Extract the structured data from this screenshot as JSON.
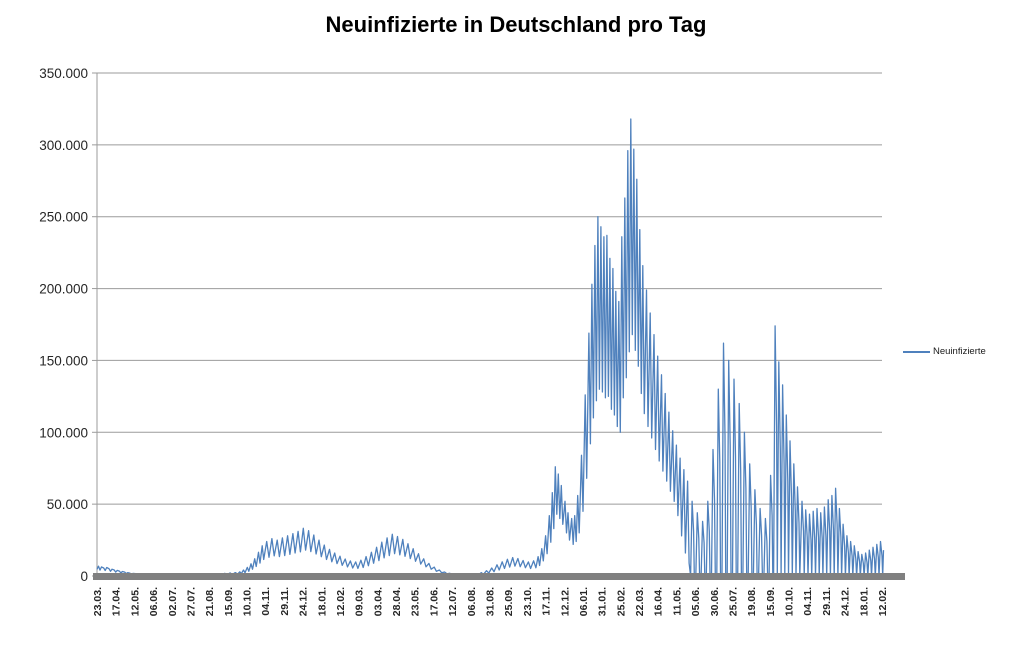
{
  "chart_data": {
    "type": "line",
    "title": "Neuinfizierte in Deutschland pro Tag",
    "series_name": "Neuinfizierte",
    "line_color": "#4F81BD",
    "grid_color": "#9b9b9b",
    "axis_color": "#808080",
    "text_color": "#262626",
    "ylim": [
      0,
      350000
    ],
    "yticks": [
      0,
      50000,
      100000,
      150000,
      200000,
      250000,
      300000,
      350000
    ],
    "ytick_labels": [
      "0",
      "50.000",
      "100.000",
      "150.000",
      "200.000",
      "250.000",
      "300.000",
      "350.000"
    ],
    "x_tick_interval_days": 25,
    "x_total_days": 1050,
    "x_tick_labels": [
      "23.03.",
      "17.04.",
      "12.05.",
      "06.06.",
      "02.07.",
      "27.07.",
      "21.08.",
      "15.09.",
      "10.10.",
      "04.11.",
      "29.11.",
      "24.12.",
      "18.01.",
      "12.02.",
      "09.03.",
      "03.04.",
      "28.04.",
      "23.05.",
      "17.06.",
      "12.07.",
      "06.08.",
      "31.08.",
      "25.09.",
      "23.10.",
      "17.11.",
      "12.12.",
      "06.01.",
      "31.01.",
      "25.02.",
      "22.03.",
      "16.04.",
      "11.05.",
      "05.06.",
      "30.06.",
      "25.07.",
      "19.08.",
      "15.09.",
      "10.10.",
      "04.11.",
      "29.11.",
      "24.12.",
      "18.01.",
      "12.02."
    ],
    "legend_position": "right",
    "grid": "horizontal",
    "points": [
      [
        0,
        4600
      ],
      [
        2,
        6800
      ],
      [
        4,
        4100
      ],
      [
        6,
        6300
      ],
      [
        9,
        5600
      ],
      [
        11,
        3800
      ],
      [
        13,
        5900
      ],
      [
        16,
        5100
      ],
      [
        18,
        3300
      ],
      [
        20,
        4700
      ],
      [
        23,
        4200
      ],
      [
        25,
        2700
      ],
      [
        27,
        3900
      ],
      [
        30,
        3400
      ],
      [
        32,
        2100
      ],
      [
        34,
        3100
      ],
      [
        37,
        2700
      ],
      [
        39,
        1600
      ],
      [
        41,
        2400
      ],
      [
        44,
        2000
      ],
      [
        46,
        1200
      ],
      [
        48,
        1800
      ],
      [
        52,
        1600
      ],
      [
        55,
        800
      ],
      [
        59,
        1400
      ],
      [
        62,
        700
      ],
      [
        66,
        1200
      ],
      [
        69,
        550
      ],
      [
        73,
        1000
      ],
      [
        76,
        450
      ],
      [
        80,
        850
      ],
      [
        83,
        380
      ],
      [
        87,
        750
      ],
      [
        90,
        340
      ],
      [
        94,
        700
      ],
      [
        97,
        360
      ],
      [
        101,
        750
      ],
      [
        104,
        400
      ],
      [
        108,
        820
      ],
      [
        111,
        430
      ],
      [
        115,
        880
      ],
      [
        118,
        460
      ],
      [
        122,
        950
      ],
      [
        125,
        500
      ],
      [
        129,
        1020
      ],
      [
        132,
        540
      ],
      [
        136,
        1100
      ],
      [
        139,
        580
      ],
      [
        143,
        1250
      ],
      [
        146,
        640
      ],
      [
        150,
        1400
      ],
      [
        153,
        720
      ],
      [
        157,
        1550
      ],
      [
        160,
        800
      ],
      [
        164,
        1700
      ],
      [
        167,
        880
      ],
      [
        171,
        1900
      ],
      [
        174,
        980
      ],
      [
        178,
        2150
      ],
      [
        181,
        1100
      ],
      [
        185,
        2400
      ],
      [
        188,
        1300
      ],
      [
        191,
        2900
      ],
      [
        193,
        1600
      ],
      [
        196,
        4200
      ],
      [
        198,
        2300
      ],
      [
        201,
        6000
      ],
      [
        203,
        3300
      ],
      [
        206,
        8500
      ],
      [
        208,
        4700
      ],
      [
        211,
        12000
      ],
      [
        213,
        6600
      ],
      [
        216,
        16500
      ],
      [
        218,
        9000
      ],
      [
        221,
        21000
      ],
      [
        223,
        11500
      ],
      [
        227,
        24000
      ],
      [
        230,
        13000
      ],
      [
        234,
        26000
      ],
      [
        237,
        14000
      ],
      [
        241,
        25000
      ],
      [
        244,
        13500
      ],
      [
        248,
        26500
      ],
      [
        251,
        14200
      ],
      [
        255,
        28000
      ],
      [
        258,
        15000
      ],
      [
        262,
        29500
      ],
      [
        265,
        16000
      ],
      [
        269,
        31000
      ],
      [
        272,
        16800
      ],
      [
        276,
        33200
      ],
      [
        279,
        18000
      ],
      [
        283,
        31500
      ],
      [
        286,
        17000
      ],
      [
        290,
        28500
      ],
      [
        293,
        15300
      ],
      [
        297,
        25000
      ],
      [
        300,
        13400
      ],
      [
        304,
        21500
      ],
      [
        307,
        11500
      ],
      [
        311,
        18500
      ],
      [
        314,
        9900
      ],
      [
        318,
        16000
      ],
      [
        321,
        8600
      ],
      [
        325,
        13800
      ],
      [
        328,
        7400
      ],
      [
        332,
        11800
      ],
      [
        335,
        6300
      ],
      [
        339,
        10500
      ],
      [
        342,
        5600
      ],
      [
        346,
        9800
      ],
      [
        349,
        5300
      ],
      [
        353,
        11000
      ],
      [
        356,
        5900
      ],
      [
        360,
        13500
      ],
      [
        363,
        7200
      ],
      [
        367,
        16500
      ],
      [
        370,
        8900
      ],
      [
        374,
        20000
      ],
      [
        377,
        10700
      ],
      [
        381,
        23500
      ],
      [
        384,
        12600
      ],
      [
        388,
        26500
      ],
      [
        391,
        14200
      ],
      [
        395,
        29000
      ],
      [
        398,
        15500
      ],
      [
        402,
        27500
      ],
      [
        405,
        14700
      ],
      [
        409,
        25500
      ],
      [
        412,
        13700
      ],
      [
        416,
        22500
      ],
      [
        419,
        12100
      ],
      [
        423,
        19000
      ],
      [
        426,
        10200
      ],
      [
        430,
        15500
      ],
      [
        433,
        8300
      ],
      [
        437,
        12000
      ],
      [
        440,
        6400
      ],
      [
        444,
        8800
      ],
      [
        447,
        4700
      ],
      [
        451,
        6200
      ],
      [
        454,
        3300
      ],
      [
        458,
        4200
      ],
      [
        461,
        2200
      ],
      [
        465,
        2800
      ],
      [
        468,
        1500
      ],
      [
        472,
        1900
      ],
      [
        475,
        1000
      ],
      [
        479,
        1300
      ],
      [
        482,
        700
      ],
      [
        486,
        1000
      ],
      [
        489,
        520
      ],
      [
        493,
        850
      ],
      [
        496,
        450
      ],
      [
        500,
        900
      ],
      [
        503,
        480
      ],
      [
        507,
        1400
      ],
      [
        510,
        750
      ],
      [
        514,
        2300
      ],
      [
        517,
        1200
      ],
      [
        521,
        3700
      ],
      [
        524,
        2000
      ],
      [
        528,
        5600
      ],
      [
        531,
        3000
      ],
      [
        535,
        7800
      ],
      [
        538,
        4200
      ],
      [
        542,
        9900
      ],
      [
        545,
        5300
      ],
      [
        549,
        11600
      ],
      [
        552,
        6200
      ],
      [
        556,
        12800
      ],
      [
        559,
        6900
      ],
      [
        563,
        12200
      ],
      [
        566,
        6500
      ],
      [
        570,
        10800
      ],
      [
        573,
        5800
      ],
      [
        577,
        9800
      ],
      [
        580,
        5200
      ],
      [
        584,
        10600
      ],
      [
        587,
        5700
      ],
      [
        590,
        13500
      ],
      [
        592,
        7300
      ],
      [
        595,
        19000
      ],
      [
        597,
        10500
      ],
      [
        600,
        28000
      ],
      [
        602,
        15500
      ],
      [
        605,
        42000
      ],
      [
        607,
        23500
      ],
      [
        609,
        58000
      ],
      [
        611,
        33000
      ],
      [
        613,
        76000
      ],
      [
        615,
        43000
      ],
      [
        617,
        71000
      ],
      [
        619,
        40000
      ],
      [
        621,
        63000
      ],
      [
        623,
        36000
      ],
      [
        626,
        52000
      ],
      [
        628,
        30000
      ],
      [
        630,
        44000
      ],
      [
        632,
        25000
      ],
      [
        635,
        40000
      ],
      [
        637,
        22000
      ],
      [
        639,
        42000
      ],
      [
        641,
        24000
      ],
      [
        643,
        56000
      ],
      [
        645,
        30000
      ],
      [
        648,
        84000
      ],
      [
        650,
        45000
      ],
      [
        653,
        126000
      ],
      [
        655,
        68000
      ],
      [
        658,
        169000
      ],
      [
        660,
        92000
      ],
      [
        662,
        203000
      ],
      [
        664,
        110000
      ],
      [
        666,
        230000
      ],
      [
        668,
        122000
      ],
      [
        670,
        250000
      ],
      [
        672,
        130000
      ],
      [
        674,
        243000
      ],
      [
        676,
        128000
      ],
      [
        678,
        236000
      ],
      [
        680,
        124000
      ],
      [
        682,
        237000
      ],
      [
        684,
        125000
      ],
      [
        686,
        221000
      ],
      [
        688,
        116000
      ],
      [
        690,
        214000
      ],
      [
        692,
        112000
      ],
      [
        694,
        198000
      ],
      [
        696,
        104000
      ],
      [
        698,
        191000
      ],
      [
        700,
        100000
      ],
      [
        702,
        236000
      ],
      [
        704,
        124000
      ],
      [
        706,
        263000
      ],
      [
        708,
        138000
      ],
      [
        710,
        296000
      ],
      [
        712,
        156000
      ],
      [
        714,
        318000
      ],
      [
        716,
        168000
      ],
      [
        718,
        297000
      ],
      [
        720,
        157000
      ],
      [
        722,
        276000
      ],
      [
        724,
        146000
      ],
      [
        726,
        241000
      ],
      [
        728,
        127000
      ],
      [
        730,
        216000
      ],
      [
        732,
        113000
      ],
      [
        735,
        199000
      ],
      [
        737,
        104000
      ],
      [
        740,
        183000
      ],
      [
        742,
        96000
      ],
      [
        745,
        168000
      ],
      [
        747,
        88000
      ],
      [
        750,
        153000
      ],
      [
        752,
        80000
      ],
      [
        755,
        140000
      ],
      [
        757,
        73000
      ],
      [
        760,
        127000
      ],
      [
        762,
        66000
      ],
      [
        765,
        114000
      ],
      [
        767,
        59000
      ],
      [
        770,
        101000
      ],
      [
        772,
        52000
      ],
      [
        775,
        91000
      ],
      [
        777,
        42000
      ],
      [
        780,
        82000
      ],
      [
        782,
        28000
      ],
      [
        785,
        74000
      ],
      [
        787,
        16000
      ],
      [
        790,
        66000
      ],
      [
        792,
        9000
      ],
      [
        794,
        0
      ],
      [
        796,
        52000
      ],
      [
        798,
        31000
      ],
      [
        799,
        0
      ],
      [
        801,
        0
      ],
      [
        803,
        44000
      ],
      [
        805,
        26000
      ],
      [
        806,
        0
      ],
      [
        808,
        0
      ],
      [
        810,
        38000
      ],
      [
        812,
        23000
      ],
      [
        813,
        0
      ],
      [
        815,
        0
      ],
      [
        817,
        52000
      ],
      [
        819,
        31000
      ],
      [
        820,
        0
      ],
      [
        822,
        0
      ],
      [
        824,
        88000
      ],
      [
        826,
        53000
      ],
      [
        827,
        0
      ],
      [
        829,
        0
      ],
      [
        831,
        130000
      ],
      [
        833,
        79000
      ],
      [
        834,
        0
      ],
      [
        836,
        0
      ],
      [
        838,
        162000
      ],
      [
        840,
        98000
      ],
      [
        841,
        0
      ],
      [
        843,
        0
      ],
      [
        845,
        150000
      ],
      [
        847,
        91000
      ],
      [
        848,
        0
      ],
      [
        850,
        0
      ],
      [
        852,
        137000
      ],
      [
        854,
        83000
      ],
      [
        855,
        0
      ],
      [
        857,
        0
      ],
      [
        859,
        120000
      ],
      [
        861,
        73000
      ],
      [
        862,
        0
      ],
      [
        864,
        0
      ],
      [
        866,
        100000
      ],
      [
        868,
        61000
      ],
      [
        869,
        0
      ],
      [
        871,
        0
      ],
      [
        873,
        78000
      ],
      [
        875,
        47000
      ],
      [
        876,
        0
      ],
      [
        878,
        0
      ],
      [
        880,
        60000
      ],
      [
        882,
        36000
      ],
      [
        883,
        0
      ],
      [
        885,
        0
      ],
      [
        887,
        47000
      ],
      [
        889,
        28000
      ],
      [
        890,
        0
      ],
      [
        892,
        0
      ],
      [
        894,
        40000
      ],
      [
        896,
        24000
      ],
      [
        897,
        0
      ],
      [
        899,
        0
      ],
      [
        901,
        70000
      ],
      [
        903,
        42000
      ],
      [
        904,
        0
      ],
      [
        905,
        0
      ],
      [
        907,
        174000
      ],
      [
        909,
        104000
      ],
      [
        910,
        0
      ],
      [
        912,
        149000
      ],
      [
        914,
        88000
      ],
      [
        915,
        0
      ],
      [
        917,
        133000
      ],
      [
        919,
        78000
      ],
      [
        920,
        0
      ],
      [
        922,
        112000
      ],
      [
        924,
        66000
      ],
      [
        925,
        0
      ],
      [
        927,
        94000
      ],
      [
        929,
        55000
      ],
      [
        930,
        0
      ],
      [
        932,
        78000
      ],
      [
        934,
        45000
      ],
      [
        935,
        0
      ],
      [
        937,
        62000
      ],
      [
        939,
        37000
      ],
      [
        940,
        0
      ],
      [
        943,
        52000
      ],
      [
        945,
        31000
      ],
      [
        946,
        0
      ],
      [
        948,
        46000
      ],
      [
        950,
        27000
      ],
      [
        951,
        0
      ],
      [
        953,
        43000
      ],
      [
        955,
        25000
      ],
      [
        956,
        0
      ],
      [
        958,
        45000
      ],
      [
        960,
        26000
      ],
      [
        961,
        0
      ],
      [
        963,
        47000
      ],
      [
        965,
        27000
      ],
      [
        966,
        0
      ],
      [
        968,
        44000
      ],
      [
        970,
        26000
      ],
      [
        971,
        0
      ],
      [
        973,
        48000
      ],
      [
        975,
        28000
      ],
      [
        976,
        0
      ],
      [
        978,
        53000
      ],
      [
        980,
        31000
      ],
      [
        981,
        0
      ],
      [
        983,
        56000
      ],
      [
        985,
        33000
      ],
      [
        986,
        0
      ],
      [
        988,
        61000
      ],
      [
        990,
        36000
      ],
      [
        991,
        0
      ],
      [
        993,
        47000
      ],
      [
        995,
        27000
      ],
      [
        996,
        0
      ],
      [
        998,
        36000
      ],
      [
        1000,
        21000
      ],
      [
        1001,
        0
      ],
      [
        1003,
        28000
      ],
      [
        1005,
        16000
      ],
      [
        1006,
        0
      ],
      [
        1008,
        24000
      ],
      [
        1010,
        14000
      ],
      [
        1011,
        0
      ],
      [
        1013,
        21000
      ],
      [
        1015,
        12000
      ],
      [
        1016,
        0
      ],
      [
        1018,
        17000
      ],
      [
        1020,
        10000
      ],
      [
        1021,
        0
      ],
      [
        1023,
        15000
      ],
      [
        1025,
        9000
      ],
      [
        1026,
        0
      ],
      [
        1028,
        16000
      ],
      [
        1030,
        9500
      ],
      [
        1031,
        0
      ],
      [
        1033,
        18000
      ],
      [
        1035,
        10500
      ],
      [
        1036,
        0
      ],
      [
        1038,
        20000
      ],
      [
        1040,
        12000
      ],
      [
        1041,
        0
      ],
      [
        1043,
        22000
      ],
      [
        1045,
        13000
      ],
      [
        1046,
        0
      ],
      [
        1048,
        24000
      ],
      [
        1050,
        14000
      ],
      [
        1051,
        0
      ],
      [
        1052,
        18000
      ]
    ]
  }
}
